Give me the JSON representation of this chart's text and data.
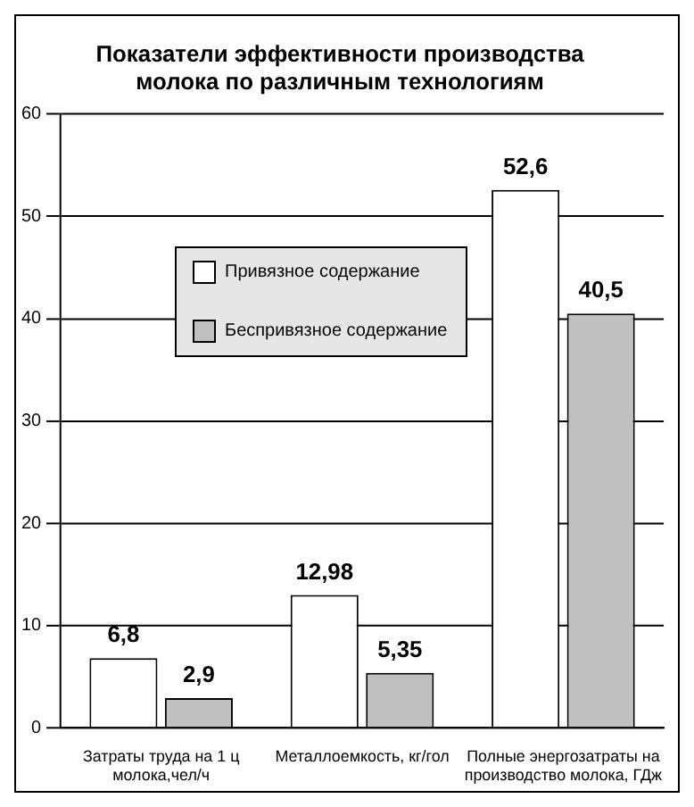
{
  "chart_data": {
    "type": "bar",
    "title": "Показатели эффективности производства\nмолока по различным технологиям",
    "categories": [
      "Затраты труда на 1 ц\nмолока,чел/ч",
      "Металлоемкость, кг/гол",
      "Полные энергозатраты на\nпроизводство молока, ГДж"
    ],
    "series": [
      {
        "name": "Привязное содержание",
        "color": "#ffffff",
        "values": [
          6.8,
          12.98,
          52.6
        ]
      },
      {
        "name": "Беспривязное содержание",
        "color": "#c0c0c0",
        "values": [
          2.9,
          5.35,
          40.5
        ]
      }
    ],
    "value_labels": [
      [
        "6,8",
        "12,98",
        "52,6"
      ],
      [
        "2,9",
        "5,35",
        "40,5"
      ]
    ],
    "ylim": [
      0,
      60
    ],
    "yticks": [
      0,
      10,
      20,
      30,
      40,
      50,
      60
    ],
    "grid": "y",
    "legend": "left"
  }
}
